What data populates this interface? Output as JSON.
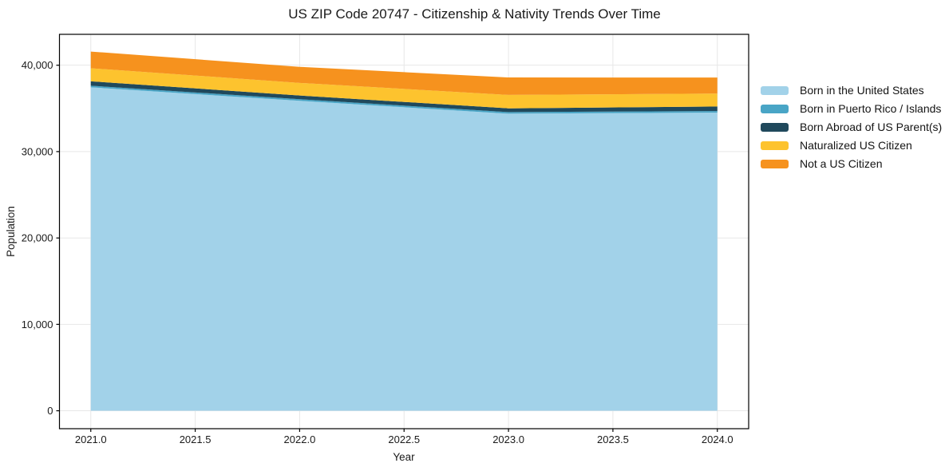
{
  "chart_data": {
    "type": "area",
    "stacked": true,
    "title": "US ZIP Code 20747 - Citizenship & Nativity Trends Over Time",
    "xlabel": "Year",
    "ylabel": "Population",
    "x": [
      2021,
      2022,
      2023,
      2024
    ],
    "series": [
      {
        "name": "Born in the United States",
        "color": "#a2d2e9",
        "values": [
          37440,
          35880,
          34390,
          34510
        ]
      },
      {
        "name": "Born in Puerto Rico / Islands",
        "color": "#49a5c6",
        "values": [
          190,
          185,
          185,
          185
        ]
      },
      {
        "name": "Born Abroad of US Parent(s)",
        "color": "#20495c",
        "values": [
          510,
          430,
          430,
          530
        ]
      },
      {
        "name": "Naturalized US Citizen",
        "color": "#fdc32e",
        "values": [
          1510,
          1460,
          1555,
          1490
        ]
      },
      {
        "name": "Not a US Citizen",
        "color": "#f6921e",
        "values": [
          1930,
          1860,
          2020,
          1860
        ]
      }
    ],
    "totals": [
      41580,
      39815,
      38580,
      38575
    ],
    "xlim": [
      2020.85,
      2024.15
    ],
    "ylim": [
      -2075,
      43575
    ],
    "xticks": [
      2021,
      2021.5,
      2022,
      2022.5,
      2023,
      2023.5,
      2024
    ],
    "xtick_labels": [
      "2021.0",
      "2021.5",
      "2022.0",
      "2022.5",
      "2023.0",
      "2023.5",
      "2024.0"
    ],
    "yticks": [
      0,
      10000,
      20000,
      30000,
      40000
    ],
    "ytick_labels": [
      "0",
      "10,000",
      "20,000",
      "30,000",
      "40,000"
    ],
    "grid": true,
    "grid_color": "#e7e7e7",
    "axis_color": "#000000",
    "text_color": "#1a1a1a",
    "legend_position": "right-outside"
  }
}
